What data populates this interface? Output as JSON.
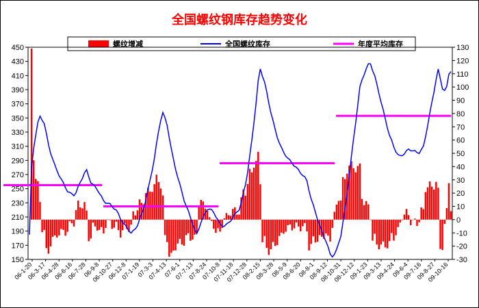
{
  "chart_data": {
    "type": "bar+line",
    "title": "全国螺纹钢库存趋势变化",
    "title_color": "#ff0000",
    "legend": {
      "placement": "top",
      "items": [
        {
          "label": "螺纹增减",
          "color": "#ff0000",
          "kind": "bar"
        },
        {
          "label": "全国螺纹库存",
          "color": "#0000ff",
          "kind": "line"
        },
        {
          "label": "年度平均库存",
          "color": "#ff00ff",
          "kind": "thick-line"
        }
      ]
    },
    "left_axis": {
      "min": 150,
      "max": 450,
      "step": 20,
      "ticks": [
        "150",
        "170",
        "190",
        "210",
        "230",
        "250",
        "270",
        "290",
        "310",
        "330",
        "350",
        "370",
        "390",
        "410",
        "430",
        "450"
      ]
    },
    "right_axis": {
      "min": -30,
      "max": 130,
      "step": 10,
      "ticks": [
        "-30",
        "-20",
        "-10",
        "0",
        "10",
        "20",
        "30",
        "40",
        "50",
        "60",
        "70",
        "80",
        "90",
        "100",
        "110",
        "120",
        "130"
      ]
    },
    "x_tick_labels": [
      "06-1-20",
      "06-3-17",
      "06-4-28",
      "06-6-16",
      "06-7-28",
      "06-9-8",
      "06-10-27",
      "06-12-8",
      "07-1-19",
      "07-3-3",
      "07-4-13",
      "07-6-1",
      "07-7-13",
      "07-8-24",
      "07-10-8",
      "07-11-18",
      "07-12-28",
      "08-2-15",
      "08-3-28",
      "08-5-9",
      "08-6-20",
      "08-8-1",
      "08-9-12",
      "08-10-31",
      "08-12-12",
      "09-1-23",
      "09-3-13",
      "09-4-24",
      "09-6-4",
      "09-7-16",
      "09-8-27",
      "09-10-16"
    ],
    "n_weeks": 200,
    "inventory_keyframes": [
      [
        0,
        185
      ],
      [
        1,
        270
      ],
      [
        3,
        315
      ],
      [
        6,
        352
      ],
      [
        9,
        345
      ],
      [
        12,
        310
      ],
      [
        16,
        280
      ],
      [
        20,
        260
      ],
      [
        24,
        245
      ],
      [
        28,
        242
      ],
      [
        32,
        262
      ],
      [
        35,
        276
      ],
      [
        38,
        258
      ],
      [
        42,
        250
      ],
      [
        46,
        232
      ],
      [
        50,
        226
      ],
      [
        54,
        218
      ],
      [
        57,
        205
      ],
      [
        60,
        196
      ],
      [
        63,
        186
      ],
      [
        66,
        194
      ],
      [
        70,
        218
      ],
      [
        74,
        258
      ],
      [
        77,
        292
      ],
      [
        80,
        335
      ],
      [
        82,
        358
      ],
      [
        85,
        340
      ],
      [
        88,
        300
      ],
      [
        92,
        262
      ],
      [
        96,
        228
      ],
      [
        100,
        205
      ],
      [
        103,
        185
      ],
      [
        106,
        205
      ],
      [
        110,
        222
      ],
      [
        114,
        215
      ],
      [
        118,
        198
      ],
      [
        122,
        200
      ],
      [
        126,
        210
      ],
      [
        130,
        222
      ],
      [
        134,
        265
      ],
      [
        137,
        315
      ],
      [
        140,
        375
      ],
      [
        142,
        421
      ],
      [
        145,
        400
      ],
      [
        148,
        368
      ],
      [
        152,
        330
      ],
      [
        156,
        303
      ],
      [
        160,
        290
      ],
      [
        164,
        282
      ],
      [
        168,
        272
      ],
      [
        171,
        262
      ],
      [
        174,
        232
      ],
      [
        177,
        212
      ],
      [
        180,
        192
      ],
      [
        183,
        177
      ],
      [
        186,
        153
      ],
      [
        189,
        158
      ],
      [
        192,
        182
      ],
      [
        195,
        225
      ],
      [
        198,
        285
      ],
      [
        201,
        340
      ],
      [
        204,
        395
      ],
      [
        207,
        415
      ],
      [
        210,
        430
      ],
      [
        213,
        410
      ],
      [
        216,
        382
      ],
      [
        219,
        352
      ],
      [
        222,
        325
      ],
      [
        225,
        308
      ],
      [
        228,
        296
      ],
      [
        231,
        300
      ],
      [
        234,
        305
      ],
      [
        237,
        302
      ],
      [
        240,
        300
      ],
      [
        243,
        310
      ],
      [
        246,
        345
      ],
      [
        249,
        380
      ],
      [
        252,
        418
      ],
      [
        255,
        390
      ],
      [
        257,
        388
      ],
      [
        259,
        418
      ],
      [
        260,
        418
      ]
    ],
    "inventory_series_name": "全国螺纹库存",
    "weekly_change_series_name": "螺纹增减",
    "annual_average": [
      {
        "year": "2006",
        "value": 255
      },
      {
        "year": "2007",
        "value": 225
      },
      {
        "year": "2008",
        "value": 286
      },
      {
        "year": "2009",
        "value": 353
      }
    ]
  }
}
